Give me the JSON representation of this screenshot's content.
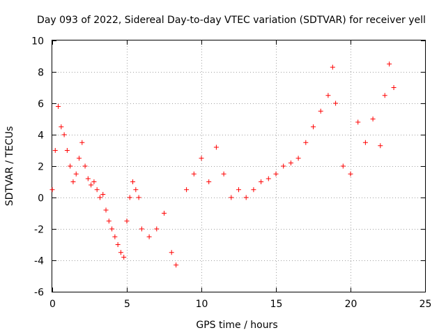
{
  "chart_data": {
    "type": "scatter",
    "title": "Day 093 of 2022, Sidereal Day-to-day VTEC variation (SDTVAR) for receiver yell",
    "xlabel": "GPS time / hours",
    "ylabel": "SDTVAR / TECUs",
    "xlim": [
      0,
      25
    ],
    "ylim": [
      -6,
      10
    ],
    "xticks": [
      "0",
      "5",
      "10",
      "15",
      "20",
      "25"
    ],
    "yticks": [
      "-6",
      "-4",
      "-2",
      "0",
      "2",
      "4",
      "6",
      "8",
      "10"
    ],
    "grid": true,
    "marker": "+",
    "color": "#ff0000",
    "series": [
      {
        "name": "SDTVAR",
        "x": [
          0.0,
          0.2,
          0.4,
          0.6,
          0.8,
          1.0,
          1.2,
          1.4,
          1.6,
          1.8,
          2.0,
          2.2,
          2.4,
          2.6,
          2.8,
          3.0,
          3.2,
          3.4,
          3.6,
          3.8,
          4.0,
          4.2,
          4.4,
          4.6,
          4.8,
          5.0,
          5.2,
          5.4,
          5.6,
          5.8,
          6.0,
          6.5,
          7.0,
          7.5,
          8.0,
          8.3,
          9.0,
          9.5,
          10.0,
          10.5,
          11.0,
          11.5,
          12.0,
          12.5,
          13.0,
          13.5,
          14.0,
          14.5,
          15.0,
          15.5,
          16.0,
          16.5,
          17.0,
          17.5,
          18.0,
          18.5,
          18.8,
          19.0,
          19.5,
          20.0,
          20.5,
          21.0,
          21.5,
          22.0,
          22.3,
          22.6,
          22.9
        ],
        "y": [
          0.5,
          3.0,
          5.8,
          4.5,
          4.0,
          3.0,
          2.0,
          1.0,
          1.5,
          2.5,
          3.5,
          2.0,
          1.2,
          0.8,
          1.0,
          0.5,
          0.0,
          0.2,
          -0.8,
          -1.5,
          -2.0,
          -2.5,
          -3.0,
          -3.5,
          -3.8,
          -1.5,
          0.0,
          1.0,
          0.5,
          0.0,
          -2.0,
          -2.5,
          -2.0,
          -1.0,
          -3.5,
          -4.3,
          0.5,
          1.5,
          2.5,
          1.0,
          3.2,
          1.5,
          0.0,
          0.5,
          0.0,
          0.5,
          1.0,
          1.2,
          1.5,
          2.0,
          2.2,
          2.5,
          3.5,
          4.5,
          5.5,
          6.5,
          8.3,
          6.0,
          2.0,
          1.5,
          4.8,
          3.5,
          5.0,
          3.3,
          6.5,
          8.5,
          7.0
        ]
      }
    ]
  }
}
